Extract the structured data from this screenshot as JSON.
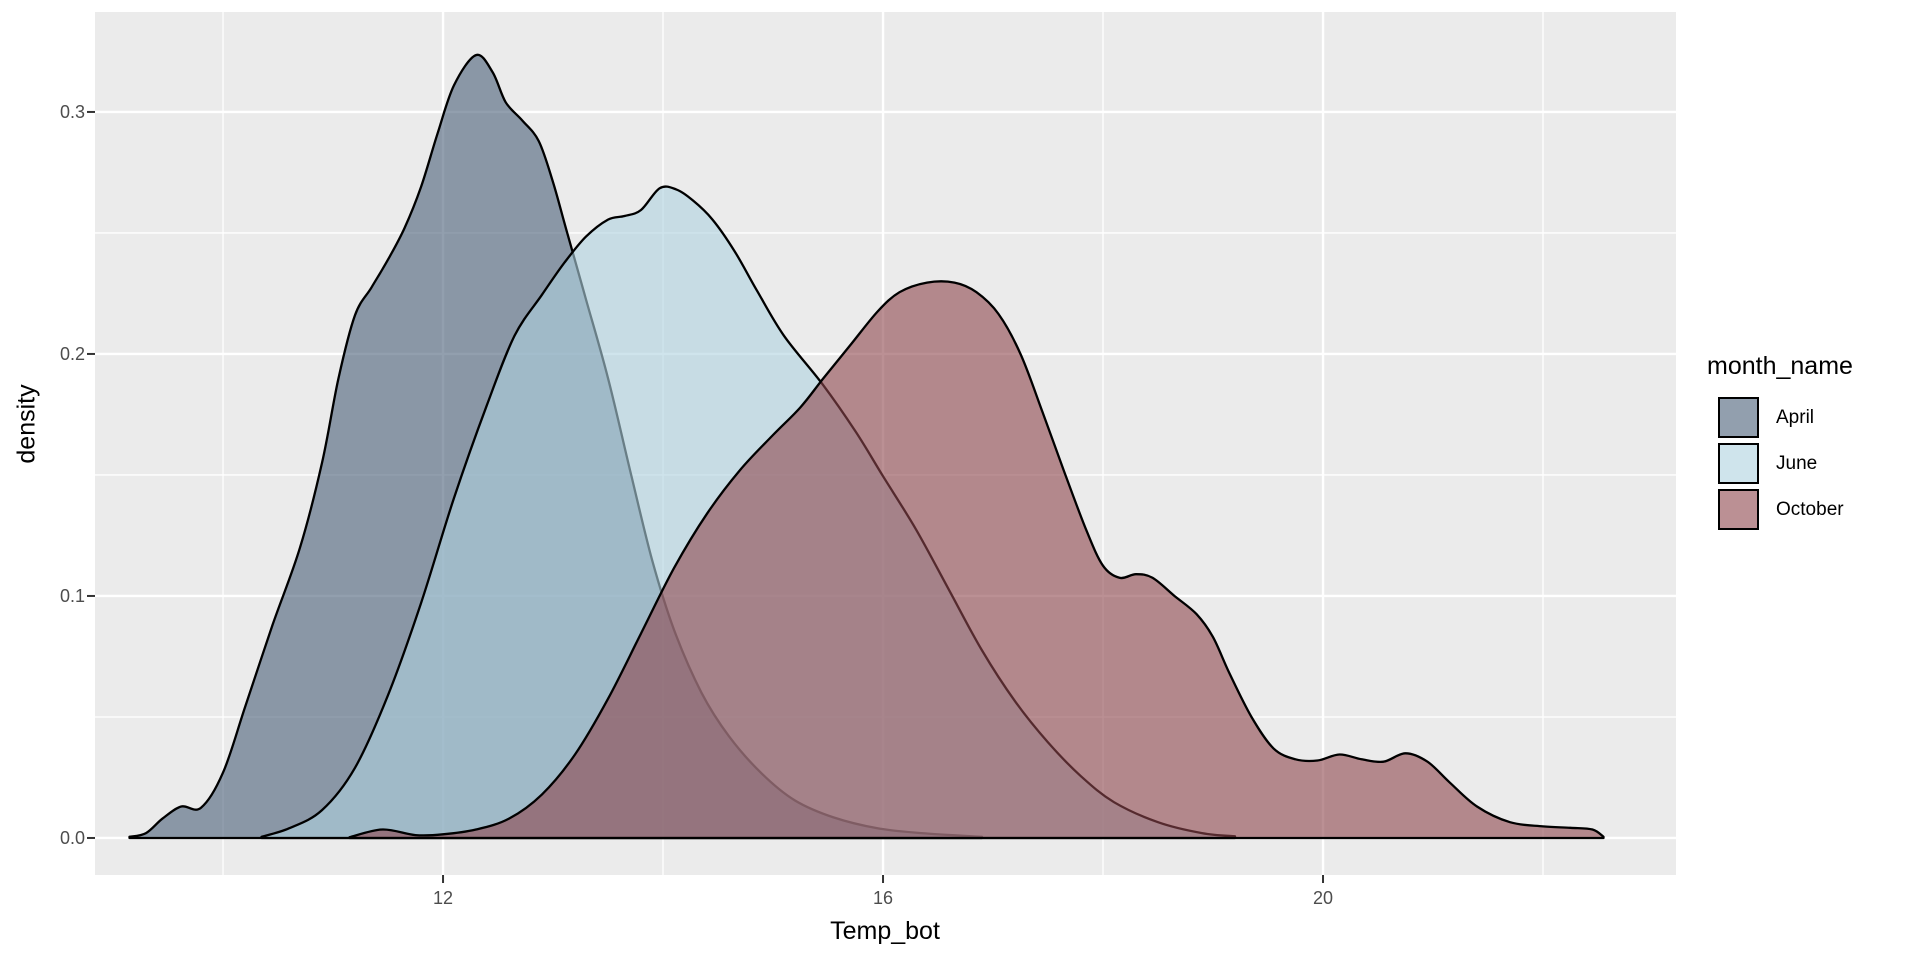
{
  "chart_data": {
    "type": "area",
    "subtype": "density",
    "title": "",
    "xlabel": "Temp_bot",
    "ylabel": "density",
    "legend_title": "month_name",
    "legend_position": "right",
    "grid": true,
    "panel_bg": "#EBEBEB",
    "grid_color": "#FFFFFF",
    "tick_color": "#333333",
    "tick_label_color": "#4D4D4D",
    "xlim": [
      8.836,
      23.209
    ],
    "ylim": [
      -0.0153,
      0.3413
    ],
    "x_ticks": [
      {
        "value": 12,
        "label": "12"
      },
      {
        "value": 16,
        "label": "16"
      },
      {
        "value": 20,
        "label": "20"
      }
    ],
    "x_minor_ticks": [
      10,
      14,
      18,
      22
    ],
    "y_ticks": [
      {
        "value": 0.0,
        "label": "0.0"
      },
      {
        "value": 0.1,
        "label": "0.1"
      },
      {
        "value": 0.2,
        "label": "0.2"
      },
      {
        "value": 0.3,
        "label": "0.3"
      }
    ],
    "y_minor_ticks": [
      0.05,
      0.15,
      0.25
    ],
    "series": [
      {
        "name": "April",
        "fill": "#495F78",
        "fill_opacity": 0.6,
        "stroke": "#000000",
        "points": [
          [
            9.15,
            0.0005
          ],
          [
            9.3,
            0.002
          ],
          [
            9.45,
            0.008
          ],
          [
            9.62,
            0.013
          ],
          [
            9.8,
            0.0125
          ],
          [
            10.0,
            0.027
          ],
          [
            10.2,
            0.054
          ],
          [
            10.45,
            0.088
          ],
          [
            10.7,
            0.12
          ],
          [
            10.9,
            0.155
          ],
          [
            11.05,
            0.19
          ],
          [
            11.2,
            0.216
          ],
          [
            11.35,
            0.2275
          ],
          [
            11.5,
            0.239
          ],
          [
            11.65,
            0.252
          ],
          [
            11.8,
            0.269
          ],
          [
            11.95,
            0.291
          ],
          [
            12.1,
            0.311
          ],
          [
            12.3,
            0.3235
          ],
          [
            12.45,
            0.3165
          ],
          [
            12.57,
            0.304
          ],
          [
            12.72,
            0.2965
          ],
          [
            12.87,
            0.288
          ],
          [
            13.0,
            0.271
          ],
          [
            13.12,
            0.2515
          ],
          [
            13.3,
            0.2225
          ],
          [
            13.5,
            0.19
          ],
          [
            13.7,
            0.152
          ],
          [
            13.9,
            0.115
          ],
          [
            14.1,
            0.086
          ],
          [
            14.35,
            0.06
          ],
          [
            14.6,
            0.042
          ],
          [
            14.9,
            0.0265
          ],
          [
            15.2,
            0.0155
          ],
          [
            15.55,
            0.0085
          ],
          [
            15.95,
            0.004
          ],
          [
            16.35,
            0.002
          ],
          [
            16.9,
            0.0005
          ]
        ]
      },
      {
        "name": "June",
        "fill": "#AFD2DF",
        "fill_opacity": 0.6,
        "stroke": "#000000",
        "points": [
          [
            10.35,
            0.0005
          ],
          [
            10.6,
            0.004
          ],
          [
            10.9,
            0.0115
          ],
          [
            11.2,
            0.029
          ],
          [
            11.5,
            0.059
          ],
          [
            11.8,
            0.097
          ],
          [
            12.1,
            0.1405
          ],
          [
            12.4,
            0.179
          ],
          [
            12.65,
            0.2075
          ],
          [
            12.9,
            0.2245
          ],
          [
            13.1,
            0.2375
          ],
          [
            13.3,
            0.2485
          ],
          [
            13.5,
            0.2555
          ],
          [
            13.65,
            0.257
          ],
          [
            13.8,
            0.2595
          ],
          [
            13.97,
            0.2685
          ],
          [
            14.12,
            0.268
          ],
          [
            14.27,
            0.2635
          ],
          [
            14.45,
            0.2555
          ],
          [
            14.65,
            0.2425
          ],
          [
            14.85,
            0.2265
          ],
          [
            15.1,
            0.2075
          ],
          [
            15.45,
            0.1875
          ],
          [
            15.75,
            0.168
          ],
          [
            16.0,
            0.1495
          ],
          [
            16.3,
            0.1275
          ],
          [
            16.6,
            0.1025
          ],
          [
            16.9,
            0.0775
          ],
          [
            17.2,
            0.0565
          ],
          [
            17.5,
            0.0395
          ],
          [
            17.8,
            0.0255
          ],
          [
            18.1,
            0.0148
          ],
          [
            18.5,
            0.0065
          ],
          [
            18.9,
            0.002
          ],
          [
            19.2,
            0.0007
          ]
        ]
      },
      {
        "name": "October",
        "fill": "#8E464D",
        "fill_opacity": 0.6,
        "stroke": "#000000",
        "points": [
          [
            11.15,
            0.0003
          ],
          [
            11.45,
            0.0035
          ],
          [
            11.75,
            0.0012
          ],
          [
            12.0,
            0.0015
          ],
          [
            12.3,
            0.0035
          ],
          [
            12.6,
            0.008
          ],
          [
            12.9,
            0.018
          ],
          [
            13.2,
            0.0345
          ],
          [
            13.5,
            0.0575
          ],
          [
            13.8,
            0.0845
          ],
          [
            14.1,
            0.1115
          ],
          [
            14.4,
            0.134
          ],
          [
            14.7,
            0.152
          ],
          [
            15.0,
            0.1665
          ],
          [
            15.25,
            0.178
          ],
          [
            15.45,
            0.1895
          ],
          [
            15.7,
            0.2035
          ],
          [
            15.95,
            0.2175
          ],
          [
            16.15,
            0.2255
          ],
          [
            16.4,
            0.2295
          ],
          [
            16.65,
            0.2295
          ],
          [
            16.85,
            0.2255
          ],
          [
            17.05,
            0.2165
          ],
          [
            17.25,
            0.2
          ],
          [
            17.45,
            0.176
          ],
          [
            17.65,
            0.151
          ],
          [
            17.85,
            0.127
          ],
          [
            18.0,
            0.1125
          ],
          [
            18.15,
            0.1075
          ],
          [
            18.3,
            0.109
          ],
          [
            18.45,
            0.1075
          ],
          [
            18.65,
            0.1
          ],
          [
            18.85,
            0.0925
          ],
          [
            19.0,
            0.083
          ],
          [
            19.15,
            0.068
          ],
          [
            19.35,
            0.05
          ],
          [
            19.55,
            0.037
          ],
          [
            19.75,
            0.0325
          ],
          [
            19.95,
            0.032
          ],
          [
            20.15,
            0.0345
          ],
          [
            20.35,
            0.0325
          ],
          [
            20.55,
            0.0315
          ],
          [
            20.75,
            0.035
          ],
          [
            20.95,
            0.0315
          ],
          [
            21.15,
            0.023
          ],
          [
            21.4,
            0.013
          ],
          [
            21.7,
            0.0065
          ],
          [
            22.0,
            0.0048
          ],
          [
            22.25,
            0.0042
          ],
          [
            22.45,
            0.0035
          ],
          [
            22.55,
            0.0005
          ]
        ]
      }
    ]
  }
}
